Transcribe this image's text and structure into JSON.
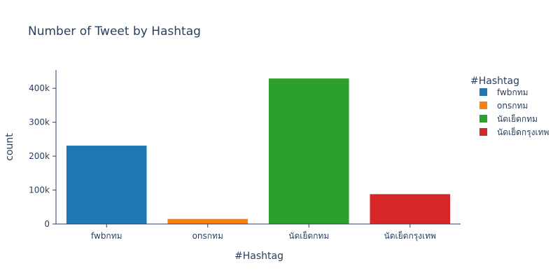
{
  "chart_data": {
    "type": "bar",
    "title": "Number of Tweet by Hashtag",
    "xlabel": "#Hashtag",
    "ylabel": "count",
    "categories": [
      "fwbกทม",
      "onsกทม",
      "นัดเย็ดกทม",
      "นัดเย็ดกรุงเทพ"
    ],
    "values": [
      232000,
      16000,
      430000,
      89000
    ],
    "colors": [
      "#1f77b4",
      "#ff7f0e",
      "#2ca02c",
      "#d62728"
    ],
    "ylim": [
      0,
      454000
    ],
    "yticks": [
      0,
      100000,
      200000,
      300000,
      400000
    ],
    "ytick_labels": [
      "0",
      "100k",
      "200k",
      "300k",
      "400k"
    ],
    "grid": false,
    "legend": {
      "title": "#Hashtag",
      "placement": "right",
      "entries": [
        "fwbกทม",
        "onsกทม",
        "นัดเย็ดกทม",
        "นัดเย็ดกรุงเทพ"
      ]
    }
  }
}
